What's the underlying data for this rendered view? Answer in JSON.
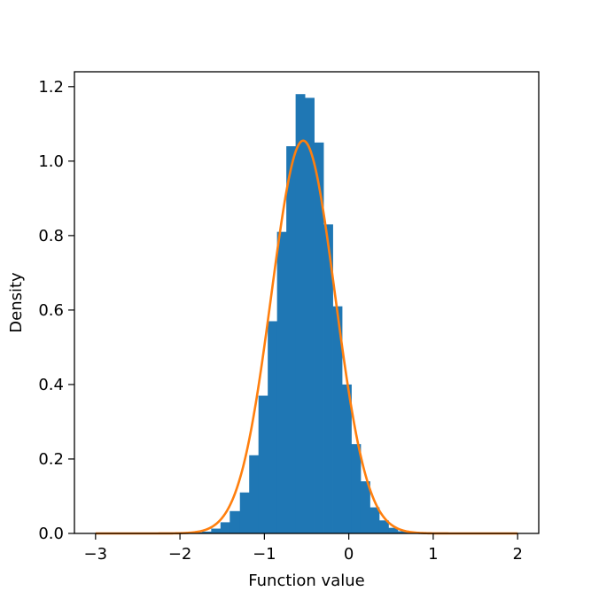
{
  "chart_data": {
    "type": "bar",
    "xlabel": "Function value",
    "ylabel": "Density",
    "xlim": [
      -3.25,
      2.25
    ],
    "ylim": [
      0.0,
      1.24
    ],
    "x_ticks": [
      -3,
      -2,
      -1,
      0,
      1,
      2
    ],
    "x_tick_labels": [
      "−3",
      "−2",
      "−1",
      "0",
      "1",
      "2"
    ],
    "y_ticks": [
      0.0,
      0.2,
      0.4,
      0.6,
      0.8,
      1.0,
      1.2
    ],
    "y_tick_labels": [
      "0.0",
      "0.2",
      "0.4",
      "0.6",
      "0.8",
      "1.0",
      "1.2"
    ],
    "grid": false,
    "series": [
      {
        "type": "histogram",
        "color": "#1f77b4",
        "bins": [
          {
            "x0": -1.85,
            "x1": -1.74,
            "value": 0.003
          },
          {
            "x0": -1.74,
            "x1": -1.63,
            "value": 0.005
          },
          {
            "x0": -1.63,
            "x1": -1.52,
            "value": 0.013
          },
          {
            "x0": -1.52,
            "x1": -1.41,
            "value": 0.03
          },
          {
            "x0": -1.41,
            "x1": -1.29,
            "value": 0.06
          },
          {
            "x0": -1.29,
            "x1": -1.18,
            "value": 0.11
          },
          {
            "x0": -1.18,
            "x1": -1.07,
            "value": 0.21
          },
          {
            "x0": -1.07,
            "x1": -0.96,
            "value": 0.37
          },
          {
            "x0": -0.96,
            "x1": -0.85,
            "value": 0.57
          },
          {
            "x0": -0.85,
            "x1": -0.74,
            "value": 0.81
          },
          {
            "x0": -0.74,
            "x1": -0.63,
            "value": 1.04
          },
          {
            "x0": -0.63,
            "x1": -0.52,
            "value": 1.18
          },
          {
            "x0": -0.52,
            "x1": -0.41,
            "value": 1.17
          },
          {
            "x0": -0.41,
            "x1": -0.3,
            "value": 1.05
          },
          {
            "x0": -0.3,
            "x1": -0.19,
            "value": 0.83
          },
          {
            "x0": -0.19,
            "x1": -0.08,
            "value": 0.61
          },
          {
            "x0": -0.08,
            "x1": 0.03,
            "value": 0.4
          },
          {
            "x0": 0.03,
            "x1": 0.14,
            "value": 0.24
          },
          {
            "x0": 0.14,
            "x1": 0.25,
            "value": 0.14
          },
          {
            "x0": 0.25,
            "x1": 0.36,
            "value": 0.07
          },
          {
            "x0": 0.36,
            "x1": 0.47,
            "value": 0.035
          },
          {
            "x0": 0.47,
            "x1": 0.58,
            "value": 0.015
          },
          {
            "x0": 0.58,
            "x1": 0.69,
            "value": 0.006
          },
          {
            "x0": 0.69,
            "x1": 0.8,
            "value": 0.002
          }
        ]
      },
      {
        "type": "line",
        "color": "#ff7f0e",
        "distribution": "normal",
        "mean": -0.54,
        "std": 0.378,
        "x_range": [
          -3.0,
          2.0
        ],
        "peak_density": 1.055
      }
    ]
  }
}
